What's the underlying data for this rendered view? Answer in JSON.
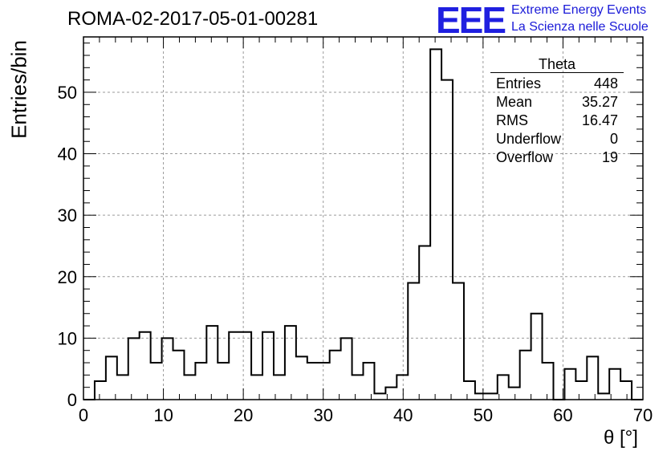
{
  "title": "ROMA-02-2017-05-01-00281",
  "logo": {
    "mark": "EEE",
    "line1": "Extreme Energy Events",
    "line2": "La Scienza nelle Scuole",
    "color": "#1f1fe0"
  },
  "chart_data": {
    "type": "histogram",
    "xlabel": "θ [°]",
    "ylabel": "Entries/bin",
    "xlim": [
      0,
      70
    ],
    "ylim": [
      0,
      59
    ],
    "grid": true,
    "x_ticks": [
      "0",
      "10",
      "20",
      "30",
      "40",
      "50",
      "60",
      "70"
    ],
    "y_ticks": [
      "0",
      "10",
      "20",
      "30",
      "40",
      "50"
    ],
    "bin_width": 1.4,
    "bin_start": 0,
    "values": [
      0,
      3,
      7,
      4,
      10,
      11,
      6,
      10,
      8,
      4,
      6,
      12,
      6,
      11,
      11,
      4,
      11,
      4,
      12,
      7,
      6,
      6,
      8,
      10,
      4,
      6,
      1,
      2,
      4,
      19,
      25,
      57,
      52,
      19,
      3,
      1,
      1,
      4,
      2,
      8,
      14,
      6,
      0,
      5,
      3,
      7,
      1,
      5,
      3,
      0
    ],
    "stats": {
      "name": "Theta",
      "rows": [
        {
          "label": "Entries",
          "value": "448"
        },
        {
          "label": "Mean",
          "value": "35.27"
        },
        {
          "label": "RMS",
          "value": "16.47"
        },
        {
          "label": "Underflow",
          "value": "0"
        },
        {
          "label": "Overflow",
          "value": "19"
        }
      ]
    }
  }
}
